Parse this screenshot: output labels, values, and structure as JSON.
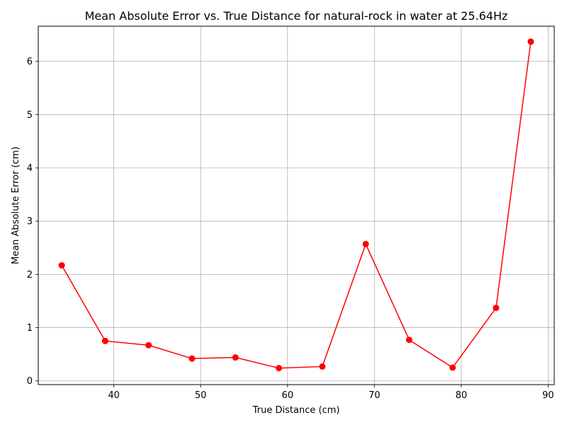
{
  "chart_data": {
    "type": "line",
    "title": "Mean Absolute Error vs. True Distance for natural-rock in water at 25.64Hz",
    "xlabel": "True Distance (cm)",
    "ylabel": "Mean Absolute Error (cm)",
    "xlim": [
      31.3,
      90.7
    ],
    "ylim": [
      -0.07,
      6.66
    ],
    "xticks": [
      40,
      50,
      60,
      70,
      80,
      90
    ],
    "yticks": [
      0,
      1,
      2,
      3,
      4,
      5,
      6
    ],
    "grid": true,
    "series": [
      {
        "color": "#ff0000",
        "marker": "circle",
        "x": [
          34,
          39,
          44,
          49,
          54,
          59,
          64,
          69,
          74,
          79,
          84,
          88
        ],
        "y": [
          2.17,
          0.75,
          0.67,
          0.42,
          0.44,
          0.24,
          0.27,
          2.57,
          0.77,
          0.25,
          1.37,
          6.37
        ]
      }
    ]
  }
}
